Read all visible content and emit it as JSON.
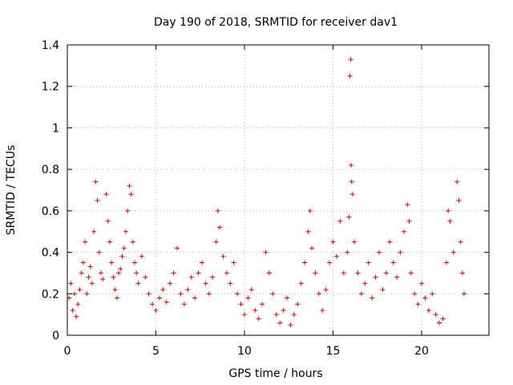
{
  "chart_data": {
    "type": "scatter",
    "title": "Day 190 of 2018, SRMTID for receiver dav1",
    "xlabel": "GPS time / hours",
    "ylabel": "SRMTID / TECUs",
    "xlim": [
      0,
      23.8
    ],
    "ylim": [
      0,
      1.4
    ],
    "xticks": [
      "0",
      "5",
      "10",
      "15",
      "20"
    ],
    "yticks": [
      "0",
      "0.2",
      "0.4",
      "0.6",
      "0.8",
      "1",
      "1.2",
      "1.4"
    ],
    "grid": true,
    "marker": "+",
    "color": "#e00000",
    "series": [
      {
        "name": "SRMTID",
        "points": [
          [
            0.1,
            0.18
          ],
          [
            0.2,
            0.25
          ],
          [
            0.3,
            0.12
          ],
          [
            0.4,
            0.2
          ],
          [
            0.5,
            0.09
          ],
          [
            0.6,
            0.15
          ],
          [
            0.7,
            0.22
          ],
          [
            0.8,
            0.3
          ],
          [
            0.9,
            0.35
          ],
          [
            1.0,
            0.45
          ],
          [
            1.1,
            0.2
          ],
          [
            1.2,
            0.28
          ],
          [
            1.3,
            0.33
          ],
          [
            1.4,
            0.25
          ],
          [
            1.5,
            0.5
          ],
          [
            1.6,
            0.74
          ],
          [
            1.7,
            0.65
          ],
          [
            1.8,
            0.4
          ],
          [
            1.9,
            0.3
          ],
          [
            2.0,
            0.27
          ],
          [
            2.2,
            0.68
          ],
          [
            2.3,
            0.55
          ],
          [
            2.4,
            0.45
          ],
          [
            2.5,
            0.35
          ],
          [
            2.6,
            0.28
          ],
          [
            2.7,
            0.22
          ],
          [
            2.8,
            0.18
          ],
          [
            2.9,
            0.3
          ],
          [
            3.0,
            0.32
          ],
          [
            3.1,
            0.38
          ],
          [
            3.2,
            0.42
          ],
          [
            3.3,
            0.5
          ],
          [
            3.4,
            0.6
          ],
          [
            3.5,
            0.72
          ],
          [
            3.6,
            0.68
          ],
          [
            3.7,
            0.45
          ],
          [
            3.8,
            0.35
          ],
          [
            3.9,
            0.3
          ],
          [
            4.0,
            0.25
          ],
          [
            4.2,
            0.38
          ],
          [
            4.4,
            0.28
          ],
          [
            4.6,
            0.2
          ],
          [
            4.8,
            0.15
          ],
          [
            5.0,
            0.12
          ],
          [
            5.2,
            0.18
          ],
          [
            5.4,
            0.22
          ],
          [
            5.6,
            0.16
          ],
          [
            5.8,
            0.25
          ],
          [
            6.0,
            0.3
          ],
          [
            6.2,
            0.42
          ],
          [
            6.4,
            0.2
          ],
          [
            6.6,
            0.15
          ],
          [
            6.8,
            0.22
          ],
          [
            7.0,
            0.28
          ],
          [
            7.2,
            0.18
          ],
          [
            7.4,
            0.3
          ],
          [
            7.6,
            0.35
          ],
          [
            7.8,
            0.25
          ],
          [
            8.0,
            0.2
          ],
          [
            8.2,
            0.28
          ],
          [
            8.4,
            0.45
          ],
          [
            8.5,
            0.6
          ],
          [
            8.6,
            0.52
          ],
          [
            8.8,
            0.38
          ],
          [
            9.0,
            0.3
          ],
          [
            9.2,
            0.25
          ],
          [
            9.4,
            0.35
          ],
          [
            9.6,
            0.2
          ],
          [
            9.8,
            0.15
          ],
          [
            10.0,
            0.1
          ],
          [
            10.2,
            0.18
          ],
          [
            10.4,
            0.22
          ],
          [
            10.6,
            0.12
          ],
          [
            10.8,
            0.08
          ],
          [
            11.0,
            0.15
          ],
          [
            11.2,
            0.4
          ],
          [
            11.4,
            0.3
          ],
          [
            11.6,
            0.2
          ],
          [
            11.8,
            0.1
          ],
          [
            12.0,
            0.06
          ],
          [
            12.2,
            0.12
          ],
          [
            12.4,
            0.18
          ],
          [
            12.6,
            0.05
          ],
          [
            12.8,
            0.1
          ],
          [
            13.0,
            0.15
          ],
          [
            13.2,
            0.25
          ],
          [
            13.4,
            0.35
          ],
          [
            13.6,
            0.5
          ],
          [
            13.7,
            0.6
          ],
          [
            13.8,
            0.42
          ],
          [
            14.0,
            0.3
          ],
          [
            14.2,
            0.2
          ],
          [
            14.4,
            0.12
          ],
          [
            14.6,
            0.22
          ],
          [
            14.8,
            0.35
          ],
          [
            15.0,
            0.45
          ],
          [
            15.2,
            0.38
          ],
          [
            15.4,
            0.55
          ],
          [
            15.6,
            0.3
          ],
          [
            15.8,
            0.4
          ],
          [
            15.9,
            0.57
          ],
          [
            15.95,
            1.25
          ],
          [
            16.0,
            1.33
          ],
          [
            16.02,
            0.82
          ],
          [
            16.05,
            0.74
          ],
          [
            16.1,
            0.68
          ],
          [
            16.2,
            0.45
          ],
          [
            16.4,
            0.3
          ],
          [
            16.6,
            0.2
          ],
          [
            16.8,
            0.25
          ],
          [
            17.0,
            0.35
          ],
          [
            17.2,
            0.18
          ],
          [
            17.4,
            0.28
          ],
          [
            17.6,
            0.4
          ],
          [
            17.8,
            0.22
          ],
          [
            18.0,
            0.3
          ],
          [
            18.2,
            0.45
          ],
          [
            18.4,
            0.35
          ],
          [
            18.6,
            0.28
          ],
          [
            18.8,
            0.4
          ],
          [
            19.0,
            0.5
          ],
          [
            19.2,
            0.63
          ],
          [
            19.3,
            0.55
          ],
          [
            19.4,
            0.3
          ],
          [
            19.6,
            0.2
          ],
          [
            19.8,
            0.15
          ],
          [
            20.0,
            0.25
          ],
          [
            20.2,
            0.18
          ],
          [
            20.4,
            0.12
          ],
          [
            20.6,
            0.2
          ],
          [
            20.8,
            0.1
          ],
          [
            21.0,
            0.06
          ],
          [
            21.2,
            0.08
          ],
          [
            21.4,
            0.35
          ],
          [
            21.5,
            0.6
          ],
          [
            21.6,
            0.55
          ],
          [
            21.8,
            0.4
          ],
          [
            22.0,
            0.74
          ],
          [
            22.1,
            0.65
          ],
          [
            22.2,
            0.45
          ],
          [
            22.3,
            0.3
          ],
          [
            22.4,
            0.2
          ]
        ]
      }
    ]
  }
}
